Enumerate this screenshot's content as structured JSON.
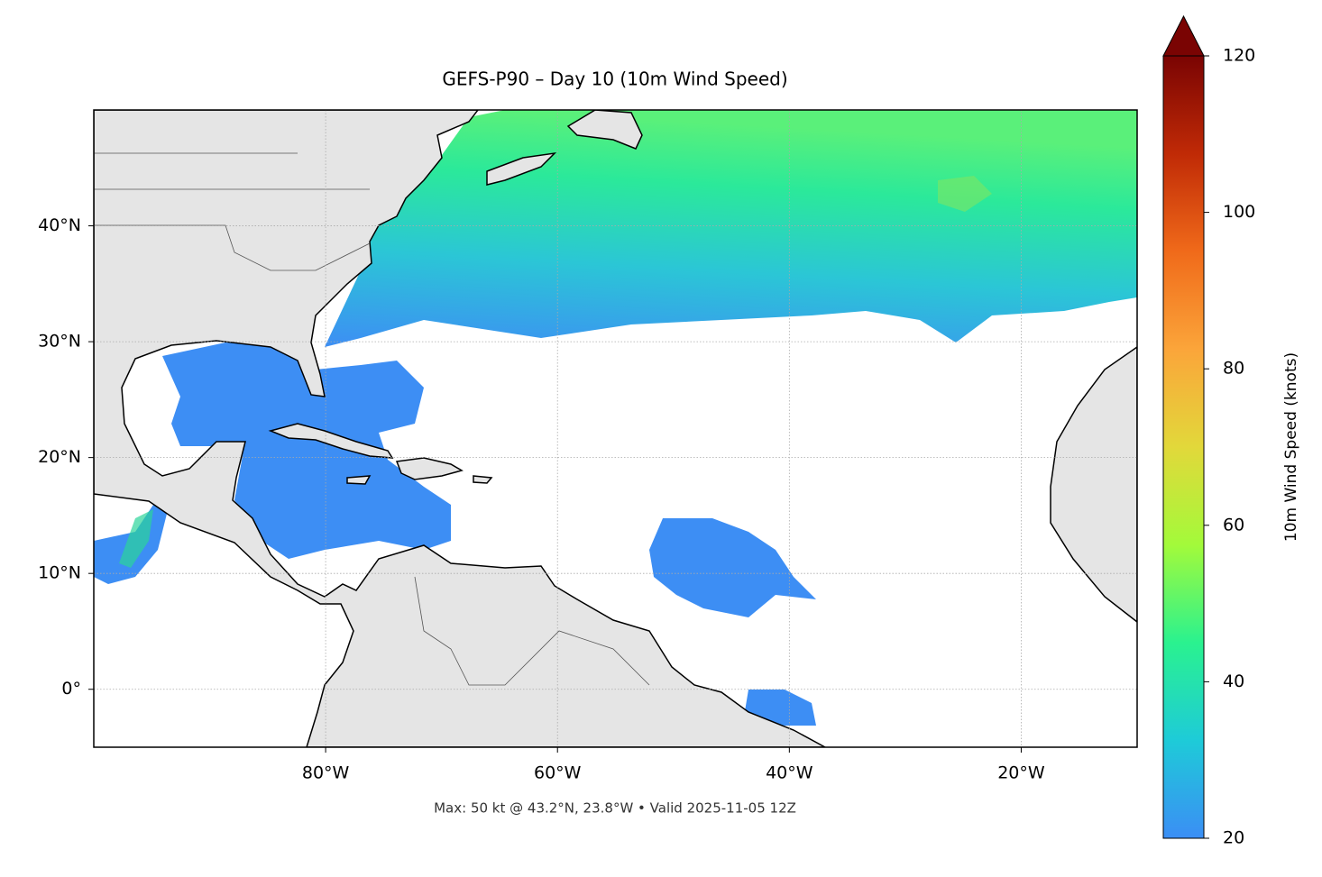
{
  "title": "GEFS-P90 – Day 10 (10m Wind Speed)",
  "footer": "Max: 50 kt @ 43.2°N, 23.8°W • Valid 2025-11-05 12Z",
  "map": {
    "xlim": [
      -100,
      -10
    ],
    "ylim": [
      -5,
      50
    ],
    "xticks": [
      {
        "value": -80,
        "label": "80°W"
      },
      {
        "value": -60,
        "label": "60°W"
      },
      {
        "value": -40,
        "label": "40°W"
      },
      {
        "value": -20,
        "label": "20°W"
      }
    ],
    "yticks": [
      {
        "value": 0,
        "label": "0°"
      },
      {
        "value": 10,
        "label": "10°N"
      },
      {
        "value": 20,
        "label": "20°N"
      },
      {
        "value": 30,
        "label": "30°N"
      },
      {
        "value": 40,
        "label": "40°N"
      }
    ],
    "grid": true
  },
  "colorbar": {
    "label": "10m Wind Speed (knots)",
    "lim": [
      20,
      120
    ],
    "ticks": [
      20,
      40,
      60,
      80,
      100,
      120
    ],
    "extend": "max",
    "colors": [
      "#3b8ef5",
      "#1ecbd8",
      "#2af28f",
      "#a3fa3a",
      "#e2d83a",
      "#fba53a",
      "#f06a1a",
      "#c02a06",
      "#7a0403"
    ]
  }
}
